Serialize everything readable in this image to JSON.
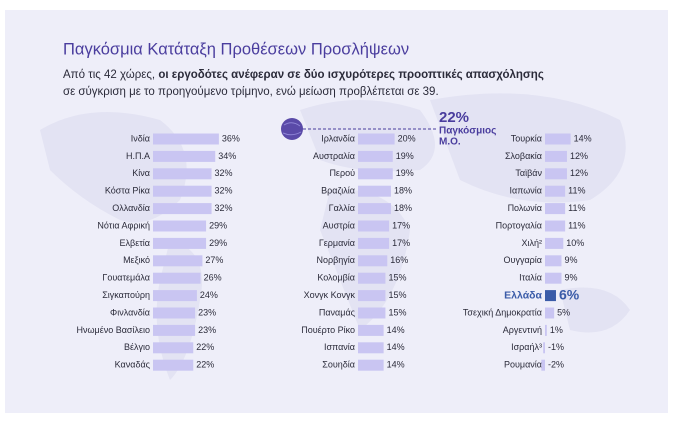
{
  "chart_data": {
    "type": "bar",
    "title": "Παγκόσμια Κατάταξη Προθέσεων Προσλήψεων",
    "subtitle": [
      "Από τις 42 χώρες, ",
      "οι εργοδότες ανέφεραν σε δύο ισχυρότερες προοπτικές απασχόλησης",
      "σε σύγκριση με το προηγούμενο τρίμηνο, ενώ μείωση προβλέπεται σε 39."
    ],
    "average_label": "22%",
    "average_text": [
      "Παγκόσμιος",
      "Μ.Ο."
    ],
    "categories": [
      "Ινδία",
      "Η.Π.Α",
      "Κίνα",
      "Κόστα Ρίκα",
      "Ολλανδία",
      "Νότια Αφρική",
      "Ελβετία",
      "Μεξικό",
      "Γουατεμάλα",
      "Σιγκαπούρη",
      "Φινλανδία",
      "Ηνωμένο Βασίλειο",
      "Βέλγιο",
      "Καναδάς",
      "Ιρλανδία",
      "Αυστραλία",
      "Περού",
      "Βραζιλία",
      "Γαλλία",
      "Αυστρία",
      "Γερμανία",
      "Νορβηγία",
      "Κολομβία",
      "Χονγκ Κονγκ",
      "Παναμάς",
      "Πουέρτο Ρίκο",
      "Ισπανία",
      "Σουηδία",
      "Τουρκία",
      "Σλοβακία",
      "Ταϊβάν",
      "Ιαπωνία",
      "Πολωνία",
      "Πορτογαλία",
      "Χιλή²",
      "Ουγγαρία",
      "Ιταλία",
      "Ελλάδα",
      "Τσεχική Δημοκρατία",
      "Αργεντινή",
      "Ισραήλ³",
      "Ρουμανία"
    ],
    "values": [
      36,
      34,
      32,
      32,
      32,
      29,
      29,
      27,
      26,
      24,
      23,
      23,
      22,
      22,
      20,
      19,
      19,
      18,
      18,
      17,
      17,
      16,
      15,
      15,
      15,
      14,
      14,
      14,
      14,
      12,
      12,
      11,
      11,
      11,
      10,
      9,
      9,
      6,
      5,
      1,
      -1,
      -2
    ],
    "value_labels": [
      "36%",
      "34%",
      "32%",
      "32%",
      "32%",
      "29%",
      "29%",
      "27%",
      "26%",
      "24%",
      "23%",
      "23%",
      "22%",
      "22%",
      "20%",
      "19%",
      "19%",
      "18%",
      "18%",
      "17%",
      "17%",
      "16%",
      "15%",
      "15%",
      "15%",
      "14%",
      "14%",
      "14%",
      "14%",
      "12%",
      "12%",
      "11%",
      "11%",
      "11%",
      "10%",
      "9%",
      "9%",
      "6%",
      "5%",
      "1%",
      "-1%",
      "-2%"
    ],
    "color": "#c9c5f2",
    "colors": [
      "#c9c5f2",
      "#c9c5f2",
      "#c9c5f2",
      "#c9c5f2",
      "#c9c5f2",
      "#c9c5f2",
      "#c9c5f2",
      "#c9c5f2",
      "#c9c5f2",
      "#c9c5f2",
      "#c9c5f2",
      "#c9c5f2",
      "#c9c5f2",
      "#c9c5f2",
      "#c9c5f2",
      "#c9c5f2",
      "#c9c5f2",
      "#c9c5f2",
      "#c9c5f2",
      "#c9c5f2",
      "#c9c5f2",
      "#c9c5f2",
      "#c9c5f2",
      "#c9c5f2",
      "#c9c5f2",
      "#c9c5f2",
      "#c9c5f2",
      "#c9c5f2",
      "#c9c5f2",
      "#c9c5f2",
      "#c9c5f2",
      "#c9c5f2",
      "#c9c5f2",
      "#c9c5f2",
      "#c9c5f2",
      "#c9c5f2",
      "#c9c5f2",
      "#3a5ba8",
      "#c9c5f2",
      "#c9c5f2",
      "#c9c5f2",
      "#c9c5f2"
    ]
  }
}
